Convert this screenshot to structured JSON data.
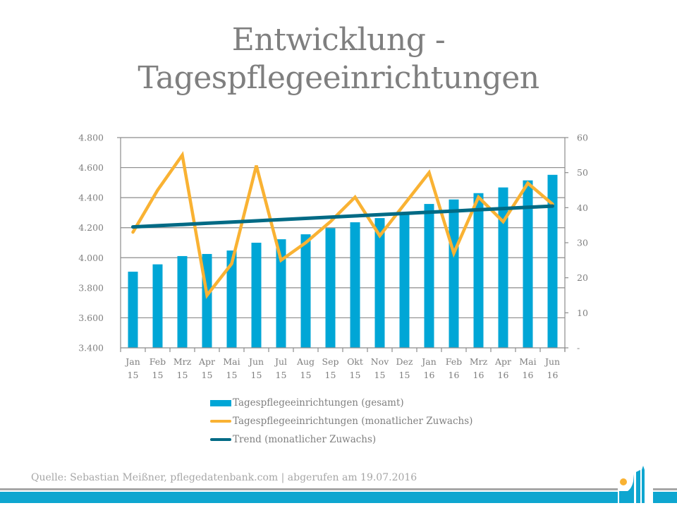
{
  "title": {
    "line1": "Entwicklung -",
    "line2": "Tagespflegeeinrichtungen"
  },
  "colors": {
    "bars": "#00a6d6",
    "monthly": "#f9b233",
    "trend": "#006a85",
    "text": "#7f7f7f",
    "grid": "#8c8c8c",
    "footer_band": "#0ea6d0"
  },
  "chart_data": {
    "type": "bar",
    "title": "Entwicklung - Tagespflegeeinrichtungen",
    "categories": [
      [
        "Jan",
        "15"
      ],
      [
        "Feb",
        "15"
      ],
      [
        "Mrz",
        "15"
      ],
      [
        "Apr",
        "15"
      ],
      [
        "Mai",
        "15"
      ],
      [
        "Jun",
        "15"
      ],
      [
        "Jul",
        "15"
      ],
      [
        "Aug",
        "15"
      ],
      [
        "Sep",
        "15"
      ],
      [
        "Okt",
        "15"
      ],
      [
        "Nov",
        "15"
      ],
      [
        "Dez",
        "15"
      ],
      [
        "Jan",
        "16"
      ],
      [
        "Feb",
        "16"
      ],
      [
        "Mrz",
        "16"
      ],
      [
        "Apr",
        "16"
      ],
      [
        "Mai",
        "16"
      ],
      [
        "Jun",
        "16"
      ]
    ],
    "series": [
      {
        "name": "Tagespflegeeinrichtungen (gesamt)",
        "type": "bar",
        "axis": "left",
        "values": [
          3907,
          3956,
          4011,
          4025,
          4048,
          4100,
          4123,
          4156,
          4197,
          4236,
          4264,
          4292,
          4358,
          4388,
          4430,
          4468,
          4515,
          4552
        ]
      },
      {
        "name": "Tagespflegeeinrichtungen (monatlicher Zuwachs)",
        "type": "line",
        "axis": "right",
        "values": [
          33,
          45,
          55,
          15,
          24,
          52,
          25,
          30,
          36,
          43,
          32,
          41,
          50,
          27,
          43,
          36,
          47,
          41
        ]
      },
      {
        "name": "Trend (monatlicher Zuwachs)",
        "type": "line",
        "axis": "right",
        "values": [
          34.5,
          34.85,
          35.2,
          35.55,
          35.9,
          36.25,
          36.6,
          36.95,
          37.3,
          37.65,
          38.0,
          38.35,
          38.7,
          39.05,
          39.4,
          39.75,
          40.1,
          40.45
        ]
      }
    ],
    "left_axis": {
      "ylim": [
        3400,
        4800
      ],
      "ticks": [
        3400,
        3600,
        3800,
        4000,
        4200,
        4400,
        4600,
        4800
      ],
      "tick_labels": [
        "3.400",
        "3.600",
        "3.800",
        "4.000",
        "4.200",
        "4.400",
        "4.600",
        "4.800"
      ]
    },
    "right_axis": {
      "ylim": [
        0,
        60
      ],
      "ticks": [
        0,
        10,
        20,
        30,
        40,
        50,
        60
      ],
      "tick_labels": [
        "-",
        "10",
        "20",
        "30",
        "40",
        "50",
        "60"
      ]
    },
    "xlabel": "",
    "ylabel": "",
    "grid": true,
    "legend_position": "bottom-center"
  },
  "legend": [
    {
      "label": "Tagespflegeeinrichtungen (gesamt)",
      "kind": "bar"
    },
    {
      "label": "Tagespflegeeinrichtungen (monatlicher Zuwachs)",
      "kind": "line"
    },
    {
      "label": "Trend (monatlicher Zuwachs)",
      "kind": "line"
    }
  ],
  "footer": {
    "source": "Quelle: Sebastian Meißner, pflegedatenbank.com | abgerufen am 19.07.2016"
  },
  "logo": {
    "icon": "pflegedatenbank-logo-icon"
  }
}
